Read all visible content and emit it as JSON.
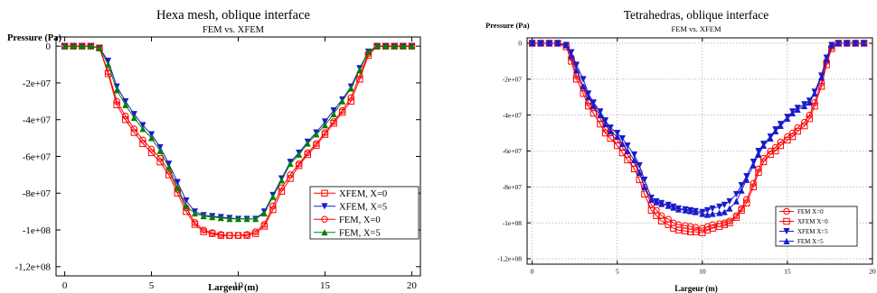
{
  "chart_data": [
    {
      "type": "line",
      "title": "Hexa mesh, oblique interface",
      "subtitle": "FEM vs. XFEM",
      "xlabel": "Largeur (m)",
      "ylabel": "Pressure (Pa)",
      "xlim": [
        -0.5,
        20.5
      ],
      "ylim": [
        -125000000,
        5000000
      ],
      "xticks": [
        0,
        5,
        10,
        15,
        20
      ],
      "xtick_labels": [
        "0",
        "5",
        "10",
        "15",
        "20"
      ],
      "yticks": [
        0,
        -20000000,
        -40000000,
        -60000000,
        -80000000,
        -100000000,
        -120000000
      ],
      "ytick_labels": [
        "0",
        "-2e+07",
        "-4e+07",
        "-6e+07",
        "-8e+07",
        "-1e+08",
        "-1,2e+08"
      ],
      "grid": false,
      "legend_position": "bottom-right",
      "series": [
        {
          "name": "XFEM, X=0",
          "color": "#ff0000",
          "marker": "square",
          "x": [
            0,
            0.5,
            1,
            1.5,
            2,
            2.5,
            3,
            3.5,
            4,
            4.5,
            5,
            5.5,
            6,
            6.5,
            7,
            7.5,
            8,
            8.5,
            9,
            9.5,
            10,
            10.5,
            11,
            11.5,
            12,
            12.5,
            13,
            13.5,
            14,
            14.5,
            15,
            15.5,
            16,
            16.5,
            17,
            17.5,
            18,
            18.5,
            19,
            19.5,
            20
          ],
          "y": [
            0,
            0,
            0,
            0,
            -1000000,
            -15000000,
            -32000000,
            -40000000,
            -47000000,
            -53000000,
            -58000000,
            -63000000,
            -70000000,
            -80000000,
            -90000000,
            -97000000,
            -101000000,
            -102000000,
            -103000000,
            -103000000,
            -103000000,
            -103000000,
            -102000000,
            -98000000,
            -89000000,
            -79000000,
            -72000000,
            -65000000,
            -59000000,
            -54000000,
            -48000000,
            -42000000,
            -36000000,
            -30000000,
            -18000000,
            -5000000,
            0,
            0,
            0,
            0,
            0
          ]
        },
        {
          "name": "XFEM, X=5",
          "color": "#1a1acc",
          "marker": "triangle-down",
          "x": [
            0,
            0.5,
            1,
            1.5,
            2,
            2.5,
            3,
            3.5,
            4,
            4.5,
            5,
            5.5,
            6,
            6.5,
            7,
            7.5,
            8,
            8.5,
            9,
            9.5,
            10,
            10.5,
            11,
            11.5,
            12,
            12.5,
            13,
            13.5,
            14,
            14.5,
            15,
            15.5,
            16,
            16.5,
            17,
            17.5,
            18,
            18.5,
            19,
            19.5,
            20
          ],
          "y": [
            0,
            0,
            0,
            0,
            -1000000,
            -8000000,
            -22000000,
            -30000000,
            -37000000,
            -43000000,
            -48000000,
            -55000000,
            -64000000,
            -74000000,
            -84000000,
            -90000000,
            -92000000,
            -92500000,
            -93000000,
            -93500000,
            -94000000,
            -94000000,
            -94000000,
            -90000000,
            -81000000,
            -72000000,
            -63000000,
            -58000000,
            -52000000,
            -47000000,
            -41000000,
            -35000000,
            -29000000,
            -22000000,
            -12000000,
            -3000000,
            0,
            0,
            0,
            0,
            0
          ]
        },
        {
          "name": "FEM, X=0",
          "color": "#ff0000",
          "marker": "circle",
          "x": [
            0,
            0.5,
            1,
            1.5,
            2,
            2.5,
            3,
            3.5,
            4,
            4.5,
            5,
            5.5,
            6,
            6.5,
            7,
            7.5,
            8,
            8.5,
            9,
            9.5,
            10,
            10.5,
            11,
            11.5,
            12,
            12.5,
            13,
            13.5,
            14,
            14.5,
            15,
            15.5,
            16,
            16.5,
            17,
            17.5,
            18,
            18.5,
            19,
            19.5,
            20
          ],
          "y": [
            0,
            0,
            0,
            0,
            -1000000,
            -14000000,
            -30000000,
            -38000000,
            -45000000,
            -51000000,
            -56000000,
            -61000000,
            -68000000,
            -78000000,
            -88000000,
            -96000000,
            -100000000,
            -101500000,
            -102500000,
            -103000000,
            -103000000,
            -102500000,
            -101000000,
            -97000000,
            -87000000,
            -77000000,
            -70000000,
            -64000000,
            -58000000,
            -53000000,
            -47000000,
            -41000000,
            -35000000,
            -28000000,
            -16000000,
            -4000000,
            0,
            0,
            0,
            0,
            0
          ]
        },
        {
          "name": "FEM, X=5",
          "color": "#008000",
          "marker": "triangle-up",
          "x": [
            0,
            0.5,
            1,
            1.5,
            2,
            2.5,
            3,
            3.5,
            4,
            4.5,
            5,
            5.5,
            6,
            6.5,
            7,
            7.5,
            8,
            8.5,
            9,
            9.5,
            10,
            10.5,
            11,
            11.5,
            12,
            12.5,
            13,
            13.5,
            14,
            14.5,
            15,
            15.5,
            16,
            16.5,
            17,
            17.5,
            18,
            18.5,
            19,
            19.5,
            20
          ],
          "y": [
            0,
            0,
            0,
            0,
            -1000000,
            -10000000,
            -24000000,
            -32000000,
            -39000000,
            -45000000,
            -50000000,
            -57000000,
            -66000000,
            -77000000,
            -87000000,
            -91000000,
            -92500000,
            -93000000,
            -93500000,
            -94000000,
            -94000000,
            -94000000,
            -94000000,
            -91000000,
            -82000000,
            -73000000,
            -64000000,
            -59000000,
            -53000000,
            -48000000,
            -43000000,
            -37000000,
            -30000000,
            -23000000,
            -13000000,
            -3000000,
            0,
            0,
            0,
            0,
            0
          ]
        }
      ]
    },
    {
      "type": "line",
      "title": "Tetrahedras, oblique interface",
      "subtitle": "FEM vs. XFEM",
      "xlabel": "Largeur (m)",
      "ylabel": "Pressure (Pa)",
      "xlim": [
        -0.3,
        20
      ],
      "ylim": [
        -123000000,
        3000000
      ],
      "xticks": [
        0,
        5,
        10,
        15,
        20
      ],
      "xtick_labels": [
        "0",
        "5",
        "10",
        "15",
        "20"
      ],
      "yticks": [
        0,
        -20000000,
        -40000000,
        -60000000,
        -80000000,
        -100000000,
        -120000000
      ],
      "ytick_labels": [
        "0",
        "-2e+07",
        "-4e+07",
        "-6e+07",
        "-8e+07",
        "-1e+08",
        "-1,2e+08"
      ],
      "grid": true,
      "legend_position": "bottom-right",
      "series": [
        {
          "name": "FEM X=0",
          "color": "#ff0000",
          "marker": "circle",
          "x": [
            0,
            0.5,
            1,
            1.5,
            2,
            2.3,
            2.6,
            3,
            3.3,
            3.6,
            4,
            4.3,
            4.6,
            5,
            5.3,
            5.6,
            6,
            6.3,
            6.6,
            7,
            7.3,
            7.6,
            8,
            8.3,
            8.6,
            9,
            9.3,
            9.6,
            10,
            10.3,
            10.6,
            11,
            11.3,
            11.6,
            12,
            12.3,
            12.6,
            13,
            13.3,
            13.6,
            14,
            14.3,
            14.6,
            15,
            15.3,
            15.6,
            16,
            16.3,
            16.6,
            17,
            17.3,
            17.6,
            18,
            18.5,
            19,
            19.5
          ],
          "y": [
            0,
            0,
            0,
            0,
            -1000000,
            -8000000,
            -18000000,
            -25000000,
            -33000000,
            -36000000,
            -42000000,
            -48000000,
            -50000000,
            -54000000,
            -58000000,
            -62000000,
            -67000000,
            -72000000,
            -80000000,
            -90000000,
            -93000000,
            -96000000,
            -98000000,
            -100000000,
            -101000000,
            -101500000,
            -102000000,
            -102500000,
            -103000000,
            -102000000,
            -101000000,
            -100500000,
            -100000000,
            -99000000,
            -96000000,
            -92000000,
            -87000000,
            -78000000,
            -70000000,
            -64000000,
            -60000000,
            -58000000,
            -55000000,
            -52000000,
            -50000000,
            -47000000,
            -44000000,
            -40000000,
            -33000000,
            -22000000,
            -10000000,
            -2000000,
            0,
            0,
            0,
            0
          ]
        },
        {
          "name": "XFEM X=0",
          "color": "#ff0000",
          "marker": "square",
          "x": [
            0,
            0.5,
            1,
            1.5,
            2,
            2.3,
            2.6,
            3,
            3.3,
            3.6,
            4,
            4.3,
            4.6,
            5,
            5.3,
            5.6,
            6,
            6.3,
            6.6,
            7,
            7.3,
            7.6,
            8,
            8.3,
            8.6,
            9,
            9.3,
            9.6,
            10,
            10.3,
            10.6,
            11,
            11.3,
            11.6,
            12,
            12.3,
            12.6,
            13,
            13.3,
            13.6,
            14,
            14.3,
            14.6,
            15,
            15.3,
            15.6,
            16,
            16.3,
            16.6,
            17,
            17.3,
            17.6,
            18,
            18.5,
            19,
            19.5
          ],
          "y": [
            0,
            0,
            0,
            0,
            -2000000,
            -10000000,
            -20000000,
            -28000000,
            -35000000,
            -39000000,
            -45000000,
            -50000000,
            -53000000,
            -57000000,
            -61000000,
            -65000000,
            -70000000,
            -76000000,
            -84000000,
            -93000000,
            -96000000,
            -99000000,
            -101000000,
            -103000000,
            -104000000,
            -104500000,
            -105000000,
            -105000000,
            -105500000,
            -104000000,
            -103000000,
            -102000000,
            -101000000,
            -100000000,
            -97000000,
            -93000000,
            -89000000,
            -80000000,
            -72000000,
            -66000000,
            -62000000,
            -60000000,
            -57000000,
            -54000000,
            -52000000,
            -49000000,
            -46000000,
            -42000000,
            -35000000,
            -24000000,
            -12000000,
            -3000000,
            0,
            0,
            0,
            0
          ]
        },
        {
          "name": "XFEM X=5",
          "color": "#1a1acc",
          "marker": "triangle-down",
          "x": [
            0,
            0.5,
            1,
            1.5,
            2,
            2.3,
            2.6,
            3,
            3.3,
            3.6,
            4,
            4.3,
            4.6,
            5,
            5.3,
            5.6,
            6,
            6.3,
            6.6,
            7,
            7.3,
            7.6,
            8,
            8.3,
            8.6,
            9,
            9.3,
            9.6,
            10,
            10.3,
            10.6,
            11,
            11.3,
            11.6,
            12,
            12.3,
            12.6,
            13,
            13.3,
            13.6,
            14,
            14.3,
            14.6,
            15,
            15.3,
            15.6,
            16,
            16.3,
            16.6,
            17,
            17.3,
            17.6,
            18,
            18.5,
            19,
            19.5
          ],
          "y": [
            0,
            0,
            0,
            0,
            -1000000,
            -5000000,
            -12000000,
            -20000000,
            -28000000,
            -33000000,
            -38000000,
            -43000000,
            -47000000,
            -50000000,
            -53000000,
            -57000000,
            -62000000,
            -68000000,
            -76000000,
            -86000000,
            -88000000,
            -89000000,
            -90000000,
            -91000000,
            -92000000,
            -92500000,
            -93000000,
            -93500000,
            -94000000,
            -93000000,
            -92000000,
            -91000000,
            -90000000,
            -88000000,
            -84000000,
            -79000000,
            -74000000,
            -66000000,
            -60000000,
            -56000000,
            -52000000,
            -48000000,
            -45000000,
            -41000000,
            -38000000,
            -36000000,
            -34000000,
            -32000000,
            -27000000,
            -18000000,
            -8000000,
            -1000000,
            0,
            0,
            0,
            0
          ]
        },
        {
          "name": "FEM X=5",
          "color": "#1a1acc",
          "marker": "triangle-up",
          "x": [
            0,
            0.5,
            1,
            1.5,
            2,
            2.3,
            2.6,
            3,
            3.3,
            3.6,
            4,
            4.3,
            4.6,
            5,
            5.3,
            5.6,
            6,
            6.3,
            6.6,
            7,
            7.3,
            7.6,
            8,
            8.3,
            8.6,
            9,
            9.3,
            9.6,
            10,
            10.3,
            10.6,
            11,
            11.3,
            11.6,
            12,
            12.3,
            12.6,
            13,
            13.3,
            13.6,
            14,
            14.3,
            14.6,
            15,
            15.3,
            15.6,
            16,
            16.3,
            16.6,
            17,
            17.3,
            17.6,
            18,
            18.5,
            19,
            19.5
          ],
          "y": [
            0,
            0,
            0,
            0,
            -1000000,
            -7000000,
            -15000000,
            -24000000,
            -30000000,
            -35000000,
            -40000000,
            -45000000,
            -49000000,
            -52000000,
            -56000000,
            -60000000,
            -65000000,
            -72000000,
            -80000000,
            -87000000,
            -88500000,
            -89500000,
            -90500000,
            -91500000,
            -92500000,
            -93000000,
            -93500000,
            -94000000,
            -95000000,
            -95500000,
            -95000000,
            -94500000,
            -94000000,
            -92000000,
            -88000000,
            -82000000,
            -76000000,
            -68000000,
            -62000000,
            -57000000,
            -53000000,
            -49000000,
            -46000000,
            -42000000,
            -39000000,
            -37000000,
            -35000000,
            -33000000,
            -28000000,
            -19000000,
            -9000000,
            -1000000,
            0,
            0,
            0,
            0
          ]
        }
      ]
    }
  ]
}
